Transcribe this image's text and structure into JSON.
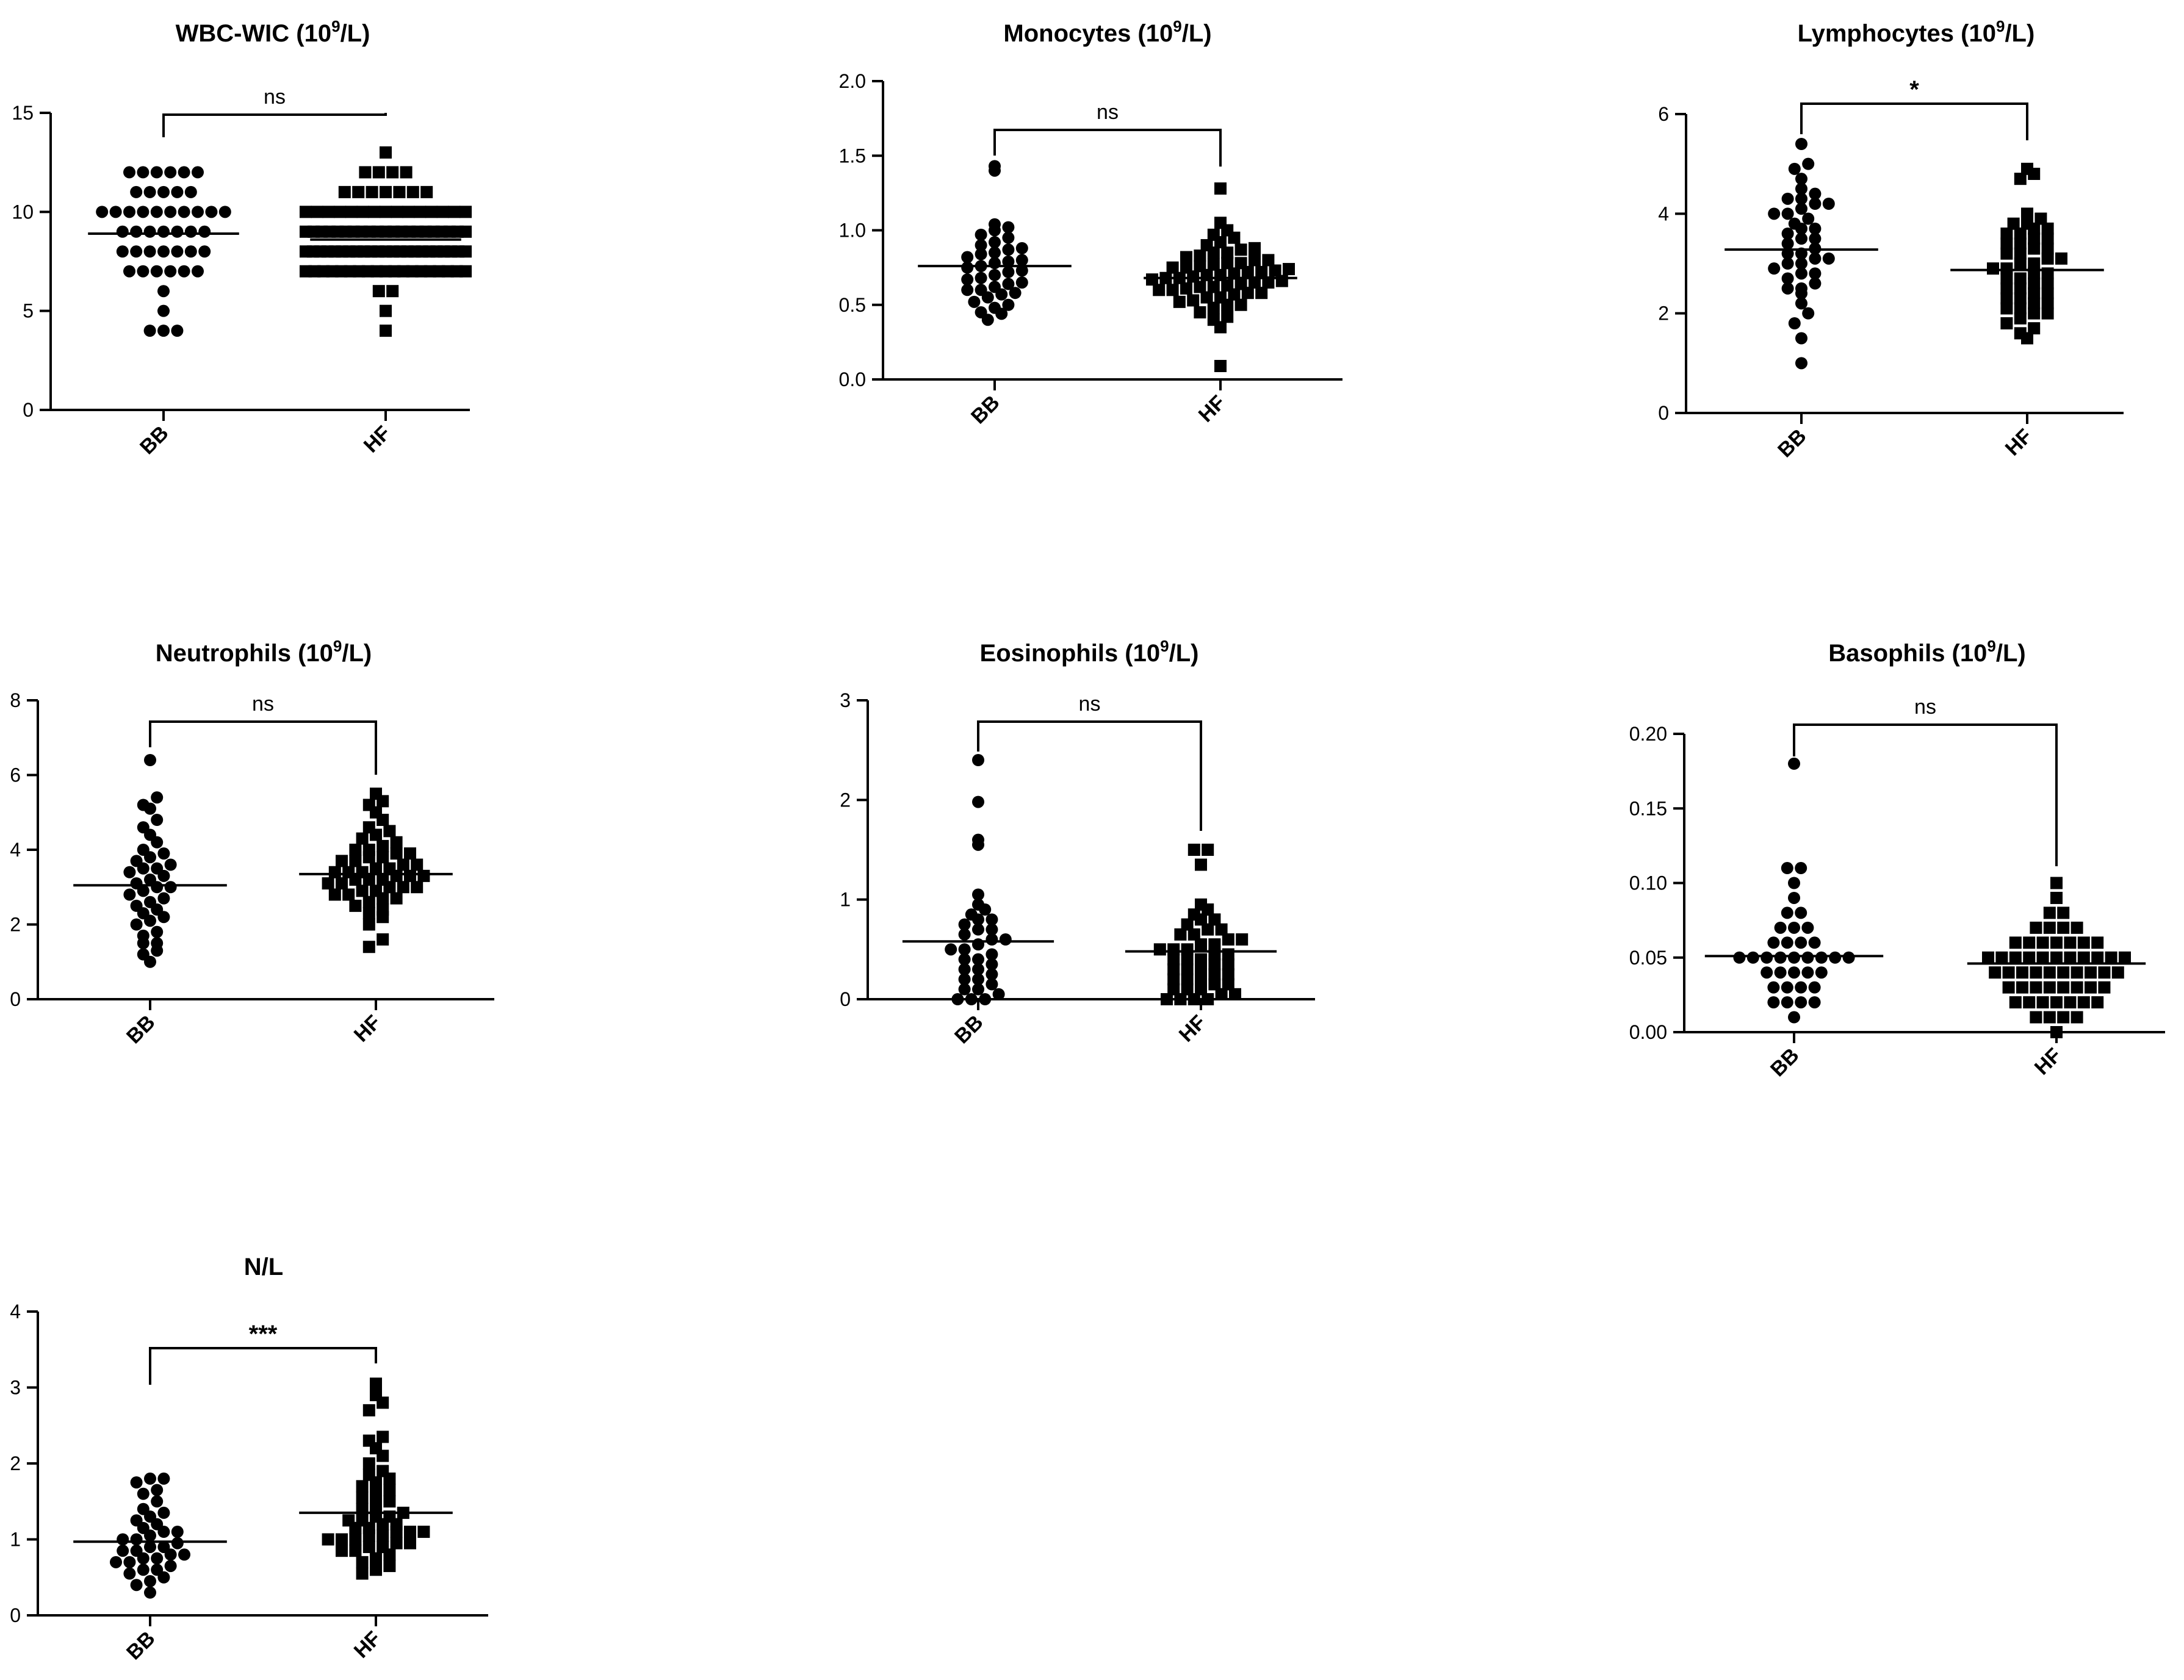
{
  "chart_data": [
    {
      "type": "scatter",
      "title": "WBC-WIC",
      "title_sup": "9",
      "unit_prefix": "10",
      "unit_suffix": "/L",
      "categories": [
        "BB",
        "HF"
      ],
      "ylim": [
        0,
        15
      ],
      "yticks": [
        0,
        5,
        10,
        15
      ],
      "ytick_labels": [
        "0",
        "5",
        "10",
        "15"
      ],
      "significance": "ns",
      "series": [
        {
          "name": "BB",
          "marker": "circle",
          "mean": 8.9,
          "values": [
            4,
            4,
            4,
            5,
            6,
            7,
            7,
            7,
            7,
            7,
            7,
            8,
            8,
            8,
            8,
            8,
            8,
            8,
            9,
            9,
            9,
            9,
            9,
            9,
            9,
            10,
            10,
            10,
            10,
            10,
            10,
            10,
            10,
            10,
            10,
            11,
            11,
            11,
            11,
            11,
            12,
            12,
            12,
            12,
            12,
            12
          ]
        },
        {
          "name": "HF",
          "marker": "square",
          "mean": 8.6,
          "values": [
            4,
            5,
            6,
            6,
            7,
            7,
            7,
            7,
            7,
            7,
            7,
            7,
            7,
            7,
            7,
            7,
            7,
            7,
            7,
            7,
            7,
            7,
            7,
            8,
            8,
            8,
            8,
            8,
            8,
            8,
            8,
            8,
            8,
            8,
            8,
            8,
            8,
            8,
            8,
            8,
            8,
            8,
            8,
            8,
            8,
            8,
            9,
            9,
            9,
            9,
            9,
            9,
            9,
            9,
            9,
            9,
            9,
            9,
            9,
            9,
            9,
            9,
            9,
            9,
            9,
            9,
            9,
            10,
            10,
            10,
            10,
            10,
            10,
            10,
            10,
            10,
            10,
            10,
            10,
            10,
            10,
            10,
            11,
            11,
            11,
            11,
            11,
            11,
            11,
            12,
            12,
            12,
            12,
            13
          ]
        }
      ]
    },
    {
      "type": "scatter",
      "title": "Monocytes",
      "title_sup": "9",
      "unit_prefix": "10",
      "unit_suffix": "/L",
      "categories": [
        "BB",
        "HF"
      ],
      "ylim": [
        0,
        2.0
      ],
      "yticks": [
        0,
        0.5,
        1.0,
        1.5,
        2.0
      ],
      "ytick_labels": [
        "0.0",
        "0.5",
        "1.0",
        "1.5",
        "2.0"
      ],
      "significance": "ns",
      "series": [
        {
          "name": "BB",
          "marker": "circle",
          "mean": 0.76,
          "values": [
            0.4,
            0.44,
            0.45,
            0.48,
            0.5,
            0.52,
            0.55,
            0.57,
            0.58,
            0.6,
            0.6,
            0.62,
            0.64,
            0.65,
            0.67,
            0.68,
            0.7,
            0.72,
            0.73,
            0.75,
            0.76,
            0.78,
            0.79,
            0.8,
            0.82,
            0.84,
            0.85,
            0.87,
            0.88,
            0.9,
            0.92,
            0.95,
            0.97,
            1.0,
            1.02,
            1.04,
            1.4,
            1.43
          ]
        },
        {
          "name": "HF",
          "marker": "square",
          "mean": 0.68,
          "values": [
            0.09,
            0.35,
            0.4,
            0.42,
            0.45,
            0.48,
            0.5,
            0.5,
            0.52,
            0.53,
            0.55,
            0.55,
            0.57,
            0.58,
            0.58,
            0.6,
            0.6,
            0.61,
            0.62,
            0.62,
            0.63,
            0.64,
            0.65,
            0.65,
            0.66,
            0.67,
            0.68,
            0.68,
            0.69,
            0.7,
            0.7,
            0.71,
            0.72,
            0.72,
            0.73,
            0.74,
            0.75,
            0.75,
            0.76,
            0.77,
            0.78,
            0.78,
            0.8,
            0.8,
            0.82,
            0.83,
            0.85,
            0.85,
            0.87,
            0.88,
            0.9,
            0.92,
            0.95,
            0.97,
            1.0,
            1.05,
            1.28
          ]
        }
      ]
    },
    {
      "type": "scatter",
      "title": "Lymphocytes",
      "title_sup": "9",
      "unit_prefix": "10",
      "unit_suffix": "/L",
      "categories": [
        "BB",
        "HF"
      ],
      "ylim": [
        0,
        6
      ],
      "yticks": [
        0,
        2,
        4,
        6
      ],
      "ytick_labels": [
        "0",
        "2",
        "4",
        "6"
      ],
      "significance": "*",
      "series": [
        {
          "name": "BB",
          "marker": "circle",
          "mean": 3.28,
          "values": [
            1.0,
            1.5,
            1.8,
            2.0,
            2.2,
            2.4,
            2.5,
            2.5,
            2.6,
            2.7,
            2.8,
            2.8,
            2.9,
            3.0,
            3.0,
            3.1,
            3.1,
            3.2,
            3.2,
            3.3,
            3.4,
            3.5,
            3.5,
            3.6,
            3.7,
            3.7,
            3.8,
            3.9,
            4.0,
            4.0,
            4.1,
            4.2,
            4.2,
            4.3,
            4.3,
            4.4,
            4.5,
            4.7,
            4.9,
            5.0,
            5.4
          ]
        },
        {
          "name": "HF",
          "marker": "square",
          "mean": 2.87,
          "values": [
            1.5,
            1.6,
            1.7,
            1.8,
            1.9,
            2.0,
            2.0,
            2.1,
            2.1,
            2.2,
            2.2,
            2.3,
            2.3,
            2.4,
            2.4,
            2.5,
            2.5,
            2.6,
            2.6,
            2.7,
            2.7,
            2.8,
            2.8,
            2.9,
            2.9,
            3.0,
            3.0,
            3.1,
            3.1,
            3.2,
            3.2,
            3.3,
            3.3,
            3.4,
            3.4,
            3.5,
            3.5,
            3.6,
            3.6,
            3.7,
            3.7,
            3.8,
            3.8,
            3.9,
            4.0,
            4.7,
            4.8,
            4.9
          ]
        }
      ]
    },
    {
      "type": "scatter",
      "title": "Neutrophils",
      "title_sup": "9",
      "unit_prefix": "10",
      "unit_suffix": "/L",
      "categories": [
        "BB",
        "HF"
      ],
      "ylim": [
        0,
        8
      ],
      "yticks": [
        0,
        2,
        4,
        6,
        8
      ],
      "ytick_labels": [
        "0",
        "2",
        "4",
        "6",
        "8"
      ],
      "significance": "ns",
      "series": [
        {
          "name": "BB",
          "marker": "circle",
          "mean": 3.05,
          "values": [
            1.0,
            1.2,
            1.3,
            1.5,
            1.5,
            1.7,
            1.8,
            2.0,
            2.1,
            2.2,
            2.3,
            2.4,
            2.5,
            2.6,
            2.7,
            2.8,
            2.9,
            3.0,
            3.0,
            3.1,
            3.2,
            3.3,
            3.4,
            3.5,
            3.5,
            3.6,
            3.7,
            3.8,
            3.9,
            4.0,
            4.2,
            4.4,
            4.6,
            4.8,
            5.1,
            5.2,
            5.4,
            6.4
          ]
        },
        {
          "name": "HF",
          "marker": "square",
          "mean": 3.35,
          "values": [
            1.4,
            1.6,
            2.0,
            2.2,
            2.3,
            2.4,
            2.5,
            2.6,
            2.7,
            2.7,
            2.8,
            2.8,
            2.9,
            2.9,
            3.0,
            3.0,
            3.0,
            3.1,
            3.1,
            3.2,
            3.2,
            3.2,
            3.3,
            3.3,
            3.3,
            3.4,
            3.4,
            3.4,
            3.5,
            3.5,
            3.6,
            3.6,
            3.7,
            3.7,
            3.8,
            3.8,
            3.9,
            3.9,
            4.0,
            4.0,
            4.1,
            4.2,
            4.3,
            4.4,
            4.5,
            4.6,
            4.8,
            5.0,
            5.2,
            5.3,
            5.5
          ]
        }
      ]
    },
    {
      "type": "scatter",
      "title": "Eosinophils",
      "title_sup": "9",
      "unit_prefix": "10",
      "unit_suffix": "/L",
      "categories": [
        "BB",
        "HF"
      ],
      "ylim": [
        0,
        3
      ],
      "yticks": [
        0,
        1,
        2,
        3
      ],
      "ytick_labels": [
        "0",
        "1",
        "2",
        "3"
      ],
      "significance": "ns",
      "series": [
        {
          "name": "BB",
          "marker": "circle",
          "mean": 0.58,
          "values": [
            0.0,
            0.0,
            0.0,
            0.05,
            0.1,
            0.1,
            0.15,
            0.2,
            0.2,
            0.25,
            0.3,
            0.3,
            0.35,
            0.4,
            0.4,
            0.45,
            0.5,
            0.5,
            0.55,
            0.6,
            0.6,
            0.65,
            0.7,
            0.7,
            0.75,
            0.8,
            0.8,
            0.85,
            0.9,
            0.95,
            1.05,
            1.55,
            1.6,
            1.98,
            2.4
          ]
        },
        {
          "name": "HF",
          "marker": "square",
          "mean": 0.48,
          "values": [
            0.0,
            0.0,
            0.0,
            0.0,
            0.05,
            0.05,
            0.1,
            0.1,
            0.1,
            0.15,
            0.15,
            0.2,
            0.2,
            0.2,
            0.25,
            0.25,
            0.3,
            0.3,
            0.3,
            0.35,
            0.35,
            0.4,
            0.4,
            0.4,
            0.45,
            0.45,
            0.5,
            0.5,
            0.5,
            0.55,
            0.55,
            0.6,
            0.6,
            0.65,
            0.65,
            0.7,
            0.7,
            0.75,
            0.8,
            0.8,
            0.85,
            0.9,
            0.95,
            1.35,
            1.5,
            1.5
          ]
        }
      ]
    },
    {
      "type": "scatter",
      "title": "Basophils",
      "title_sup": "9",
      "unit_prefix": "10",
      "unit_suffix": "/L",
      "categories": [
        "BB",
        "HF"
      ],
      "ylim": [
        0,
        0.2
      ],
      "yticks": [
        0,
        0.05,
        0.1,
        0.15,
        0.2
      ],
      "ytick_labels": [
        "0.00",
        "0.05",
        "0.10",
        "0.15",
        "0.20"
      ],
      "significance": "ns",
      "series": [
        {
          "name": "BB",
          "marker": "circle",
          "mean": 0.051,
          "values": [
            0.01,
            0.02,
            0.02,
            0.02,
            0.02,
            0.03,
            0.03,
            0.03,
            0.03,
            0.04,
            0.04,
            0.04,
            0.04,
            0.04,
            0.05,
            0.05,
            0.05,
            0.05,
            0.05,
            0.05,
            0.05,
            0.05,
            0.05,
            0.06,
            0.06,
            0.06,
            0.06,
            0.07,
            0.07,
            0.07,
            0.08,
            0.08,
            0.09,
            0.1,
            0.11,
            0.11,
            0.18
          ]
        },
        {
          "name": "HF",
          "marker": "square",
          "mean": 0.046,
          "values": [
            0.0,
            0.01,
            0.01,
            0.01,
            0.01,
            0.02,
            0.02,
            0.02,
            0.02,
            0.02,
            0.02,
            0.02,
            0.03,
            0.03,
            0.03,
            0.03,
            0.03,
            0.03,
            0.03,
            0.03,
            0.04,
            0.04,
            0.04,
            0.04,
            0.04,
            0.04,
            0.04,
            0.04,
            0.04,
            0.04,
            0.05,
            0.05,
            0.05,
            0.05,
            0.05,
            0.05,
            0.05,
            0.05,
            0.05,
            0.05,
            0.05,
            0.06,
            0.06,
            0.06,
            0.06,
            0.06,
            0.06,
            0.06,
            0.07,
            0.07,
            0.07,
            0.07,
            0.08,
            0.08,
            0.09,
            0.1
          ]
        }
      ]
    },
    {
      "type": "scatter",
      "title": "N/L",
      "title_sup": "",
      "unit_prefix": "",
      "unit_suffix": "",
      "categories": [
        "BB",
        "HF"
      ],
      "ylim": [
        0,
        4
      ],
      "yticks": [
        0,
        1,
        2,
        3,
        4
      ],
      "ytick_labels": [
        "0",
        "1",
        "2",
        "3",
        "4"
      ],
      "significance": "***",
      "series": [
        {
          "name": "BB",
          "marker": "circle",
          "mean": 0.97,
          "values": [
            0.3,
            0.4,
            0.45,
            0.5,
            0.55,
            0.6,
            0.6,
            0.65,
            0.7,
            0.7,
            0.75,
            0.75,
            0.8,
            0.8,
            0.85,
            0.85,
            0.9,
            0.9,
            0.95,
            1.0,
            1.0,
            1.05,
            1.1,
            1.1,
            1.15,
            1.2,
            1.25,
            1.3,
            1.35,
            1.4,
            1.5,
            1.6,
            1.65,
            1.75,
            1.8,
            1.8
          ]
        },
        {
          "name": "HF",
          "marker": "square",
          "mean": 1.35,
          "values": [
            0.55,
            0.6,
            0.65,
            0.7,
            0.75,
            0.8,
            0.85,
            0.85,
            0.9,
            0.9,
            0.95,
            0.95,
            1.0,
            1.0,
            1.0,
            1.05,
            1.05,
            1.1,
            1.1,
            1.1,
            1.15,
            1.15,
            1.2,
            1.2,
            1.25,
            1.25,
            1.3,
            1.3,
            1.35,
            1.4,
            1.45,
            1.5,
            1.55,
            1.6,
            1.65,
            1.7,
            1.75,
            1.8,
            1.85,
            1.9,
            2.0,
            2.1,
            2.2,
            2.3,
            2.35,
            2.7,
            2.8,
            2.9,
            3.05
          ]
        }
      ]
    }
  ]
}
